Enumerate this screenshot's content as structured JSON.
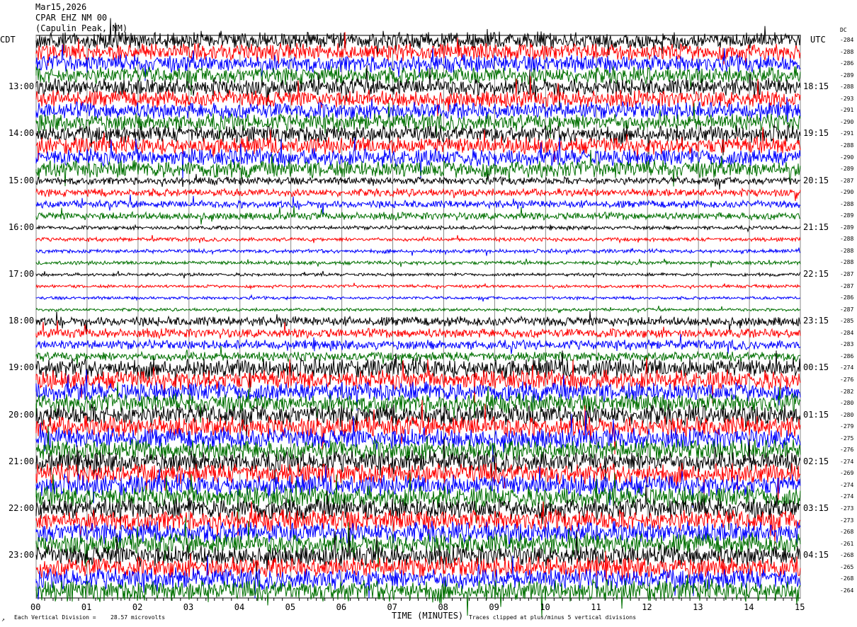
{
  "header": {
    "date": "Mar15,2026",
    "station": "CPAR EHZ NM 00",
    "location": "(Capulin Peak, NM)"
  },
  "chart_data": {
    "type": "line",
    "title": "Mar15,2026",
    "left_axis_label": "CDT",
    "right_axis_label": "UTC",
    "dc_label": "DC",
    "xlabel": "TIME (MINUTES)",
    "xlim": [
      0,
      15
    ],
    "x_ticks": [
      "00",
      "01",
      "02",
      "03",
      "04",
      "05",
      "06",
      "07",
      "08",
      "09",
      "10",
      "11",
      "12",
      "13",
      "14",
      "15"
    ],
    "left_ticks": [
      "13:00",
      "14:00",
      "15:00",
      "16:00",
      "17:00",
      "18:00",
      "19:00",
      "20:00",
      "21:00",
      "22:00",
      "23:00"
    ],
    "right_ticks": [
      "18:15",
      "19:15",
      "20:15",
      "21:15",
      "22:15",
      "23:15",
      "00:15",
      "01:15",
      "02:15",
      "03:15",
      "04:15"
    ],
    "rows_per_hour": 4,
    "minutes_per_row": 15,
    "trace_colors": [
      "#000000",
      "#ff0000",
      "#0000ff",
      "#007000"
    ],
    "dc_offsets": [
      "-284",
      "-288",
      "-286",
      "-289",
      "-288",
      "-293",
      "-291",
      "-290",
      "-291",
      "-288",
      "-290",
      "-289",
      "-287",
      "-290",
      "-288",
      "-289",
      "-289",
      "-288",
      "-288",
      "-288",
      "-287",
      "-287",
      "-286",
      "-287",
      "-285",
      "-284",
      "-283",
      "-286",
      "-274",
      "-276",
      "-282",
      "-280",
      "-280",
      "-279",
      "-275",
      "-276",
      "-274",
      "-269",
      "-274",
      "-274",
      "-273",
      "-273",
      "-268",
      "-261",
      "-268",
      "-265",
      "-268",
      "-264"
    ],
    "grid": "vertical lines each minute"
  },
  "footer": {
    "scale_prefix": "Each Vertical Division =",
    "scale_value": "28.57 microvolts",
    "clip_note": "Traces clipped at plus/minus 5 vertical divisions",
    "corner": "↗"
  }
}
